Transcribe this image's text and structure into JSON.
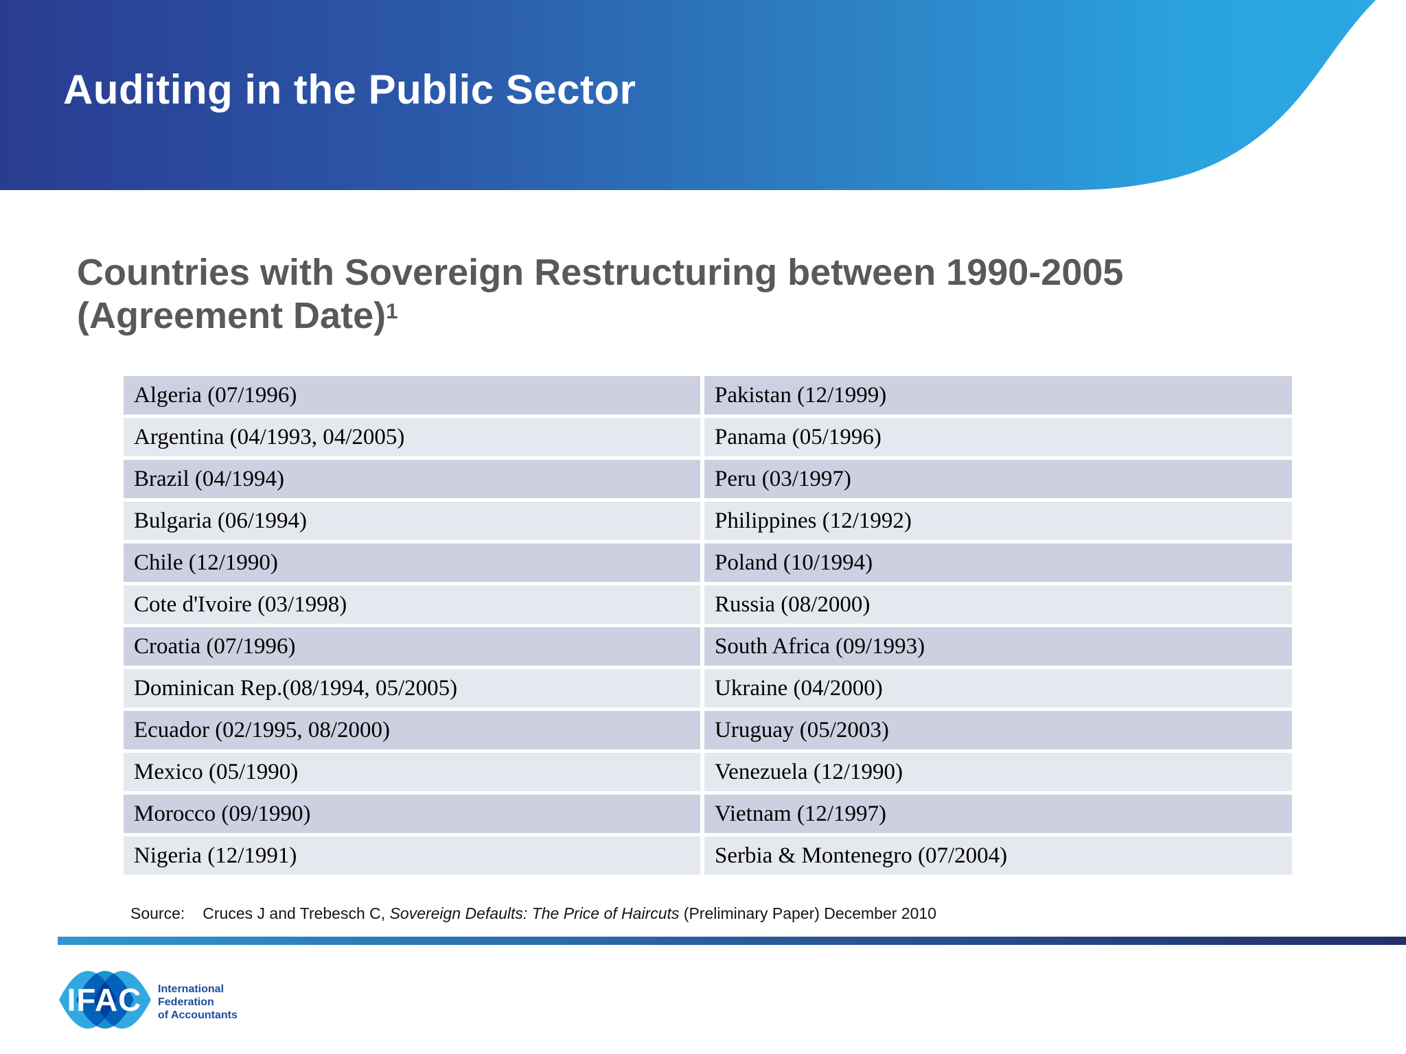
{
  "header": {
    "title": "Auditing in the Public Sector"
  },
  "slide": {
    "title_line1": "Countries with Sovereign Restructuring between 1990-2005",
    "title_line2": "(Agreement Date)",
    "title_superscript": "1"
  },
  "table": {
    "left_column": [
      "Algeria (07/1996)",
      "Argentina (04/1993, 04/2005)",
      "Brazil (04/1994)",
      "Bulgaria (06/1994)",
      "Chile (12/1990)",
      "Cote d'Ivoire (03/1998)",
      "Croatia (07/1996)",
      "Dominican Rep.(08/1994, 05/2005)",
      "Ecuador (02/1995, 08/2000)",
      "Mexico (05/1990)",
      "Morocco (09/1990)",
      "Nigeria (12/1991)"
    ],
    "right_column": [
      "Pakistan (12/1999)",
      "Panama (05/1996)",
      "Peru (03/1997)",
      "Philippines (12/1992)",
      "Poland (10/1994)",
      "Russia (08/2000)",
      "South Africa (09/1993)",
      "Ukraine (04/2000)",
      "Uruguay (05/2003)",
      "Venezuela (12/1990)",
      "Vietnam (12/1997)",
      "Serbia & Montenegro (07/2004)"
    ]
  },
  "source": {
    "label": "Source:",
    "authors": "Cruces J and Trebesch C, ",
    "work_title": "Sovereign Defaults: The Price of Haircuts",
    "suffix": " (Preliminary Paper) December 2010"
  },
  "footer": {
    "logo_text": "IFAC",
    "org_lines": [
      "International",
      "Federation",
      "of Accountants"
    ]
  },
  "colors": {
    "header_gradient": [
      "#293c90",
      "#2b57a8",
      "#2d7ec2",
      "#2aa8e4"
    ],
    "title_text": "#58595b",
    "row_dark": "#cdd0e0",
    "row_light": "#e6e8f0",
    "divider_gradient": [
      "#2f97cf",
      "#2a5f9f",
      "#232f6a"
    ],
    "logo_blue_light": "#31a9e0",
    "logo_blue_mid": "#1991d2",
    "org_text": "#1a4e9b"
  }
}
